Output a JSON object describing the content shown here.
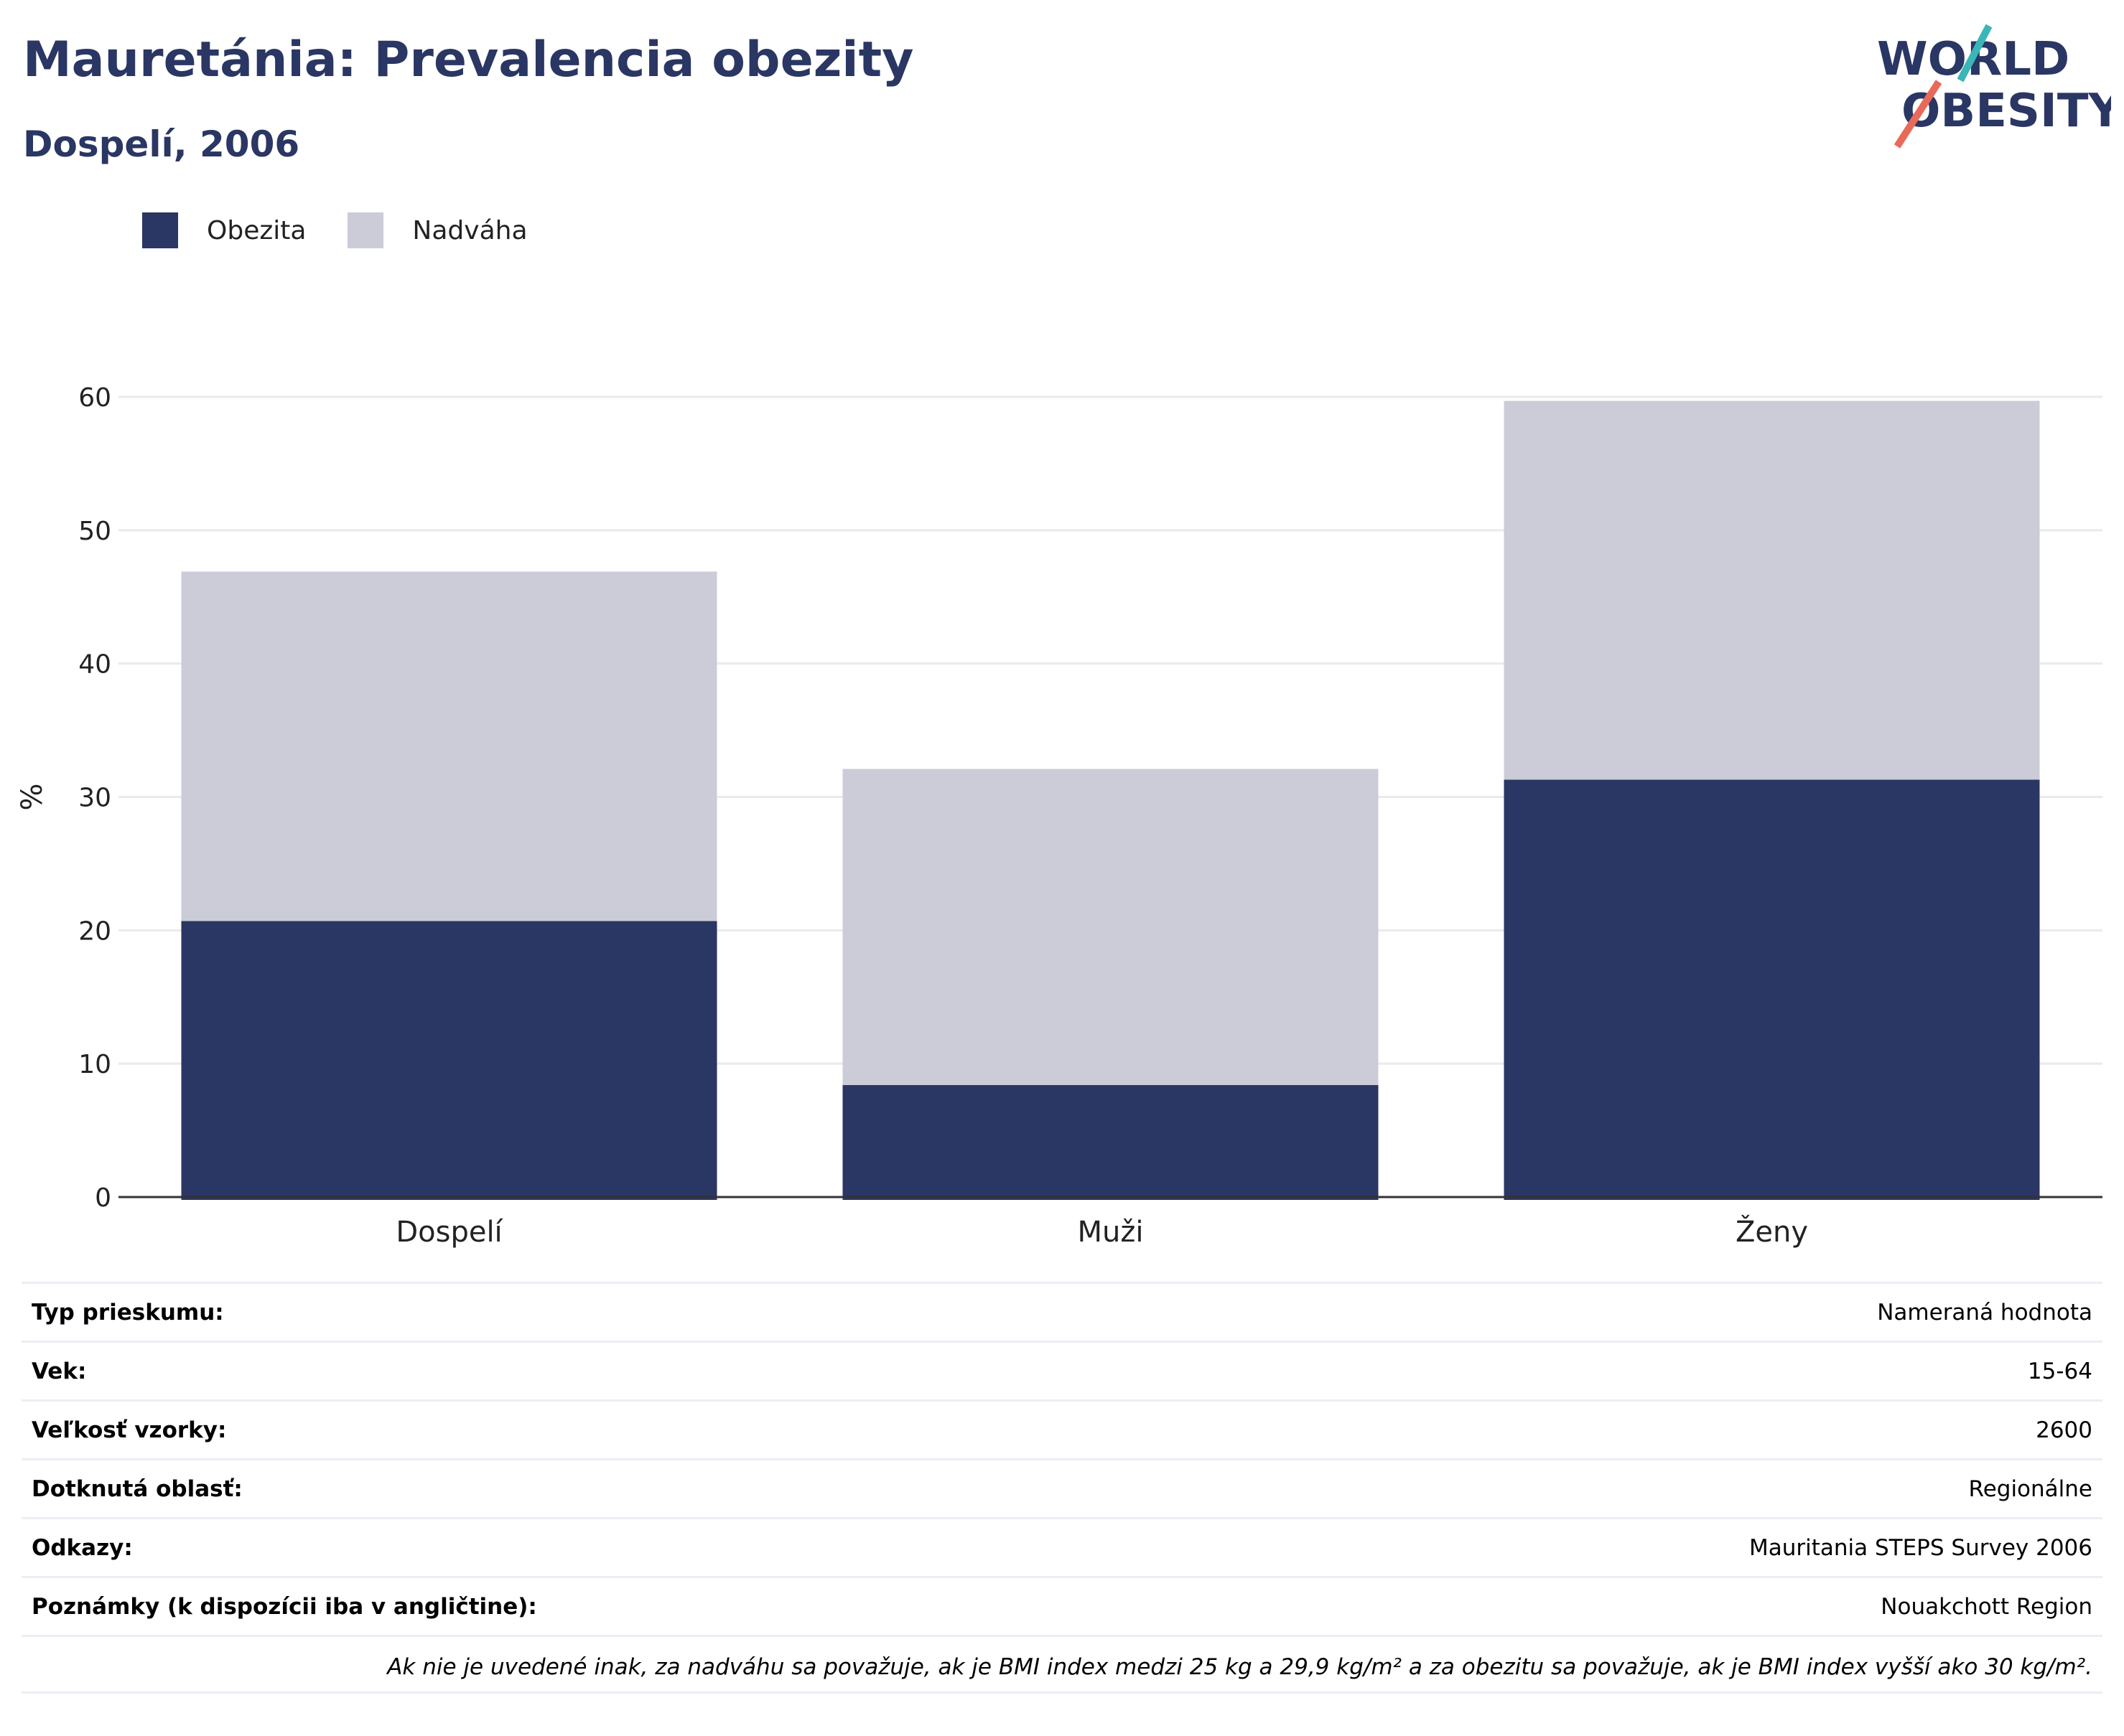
{
  "title": "Mauretánia: Prevalencia obezity",
  "subtitle": "Dospelí, 2006",
  "logo": {
    "line1": "WORLD",
    "line2": "OBESITY"
  },
  "colors": {
    "obesity": "#2a3663",
    "overweight": "#cbccd7",
    "title": "#2a3663",
    "grid": "#e9eaee",
    "logo_teal": "#3ab5b8",
    "logo_red": "#e86a5a"
  },
  "chart_data": {
    "type": "bar",
    "stacked": true,
    "categories": [
      "Dospelí",
      "Muži",
      "Ženy"
    ],
    "series": [
      {
        "name": "Obezita",
        "values": [
          20.7,
          8.4,
          31.3
        ]
      },
      {
        "name": "Nadváha",
        "values": [
          26.2,
          23.7,
          28.4
        ]
      }
    ],
    "ylabel": "%",
    "ylim": [
      0,
      60
    ],
    "yticks": [
      0,
      10,
      20,
      30,
      40,
      50,
      60
    ],
    "grid": true,
    "legend_position": "top-left"
  },
  "info": [
    {
      "label": "Typ prieskumu:",
      "value": "Nameraná hodnota"
    },
    {
      "label": "Vek:",
      "value": "15-64"
    },
    {
      "label": "Veľkosť vzorky:",
      "value": "2600"
    },
    {
      "label": "Dotknutá oblasť:",
      "value": "Regionálne"
    },
    {
      "label": "Odkazy:",
      "value": "Mauritania STEPS Survey 2006"
    },
    {
      "label": "Poznámky (k dispozícii iba v angličtine):",
      "value": "Nouakchott Region"
    }
  ],
  "note": "Ak nie je uvedené inak, za nadváhu sa považuje, ak je BMI index medzi 25 kg a 29,9 kg/m² a za obezitu sa považuje, ak je BMI index vyšší ako 30 kg/m²."
}
